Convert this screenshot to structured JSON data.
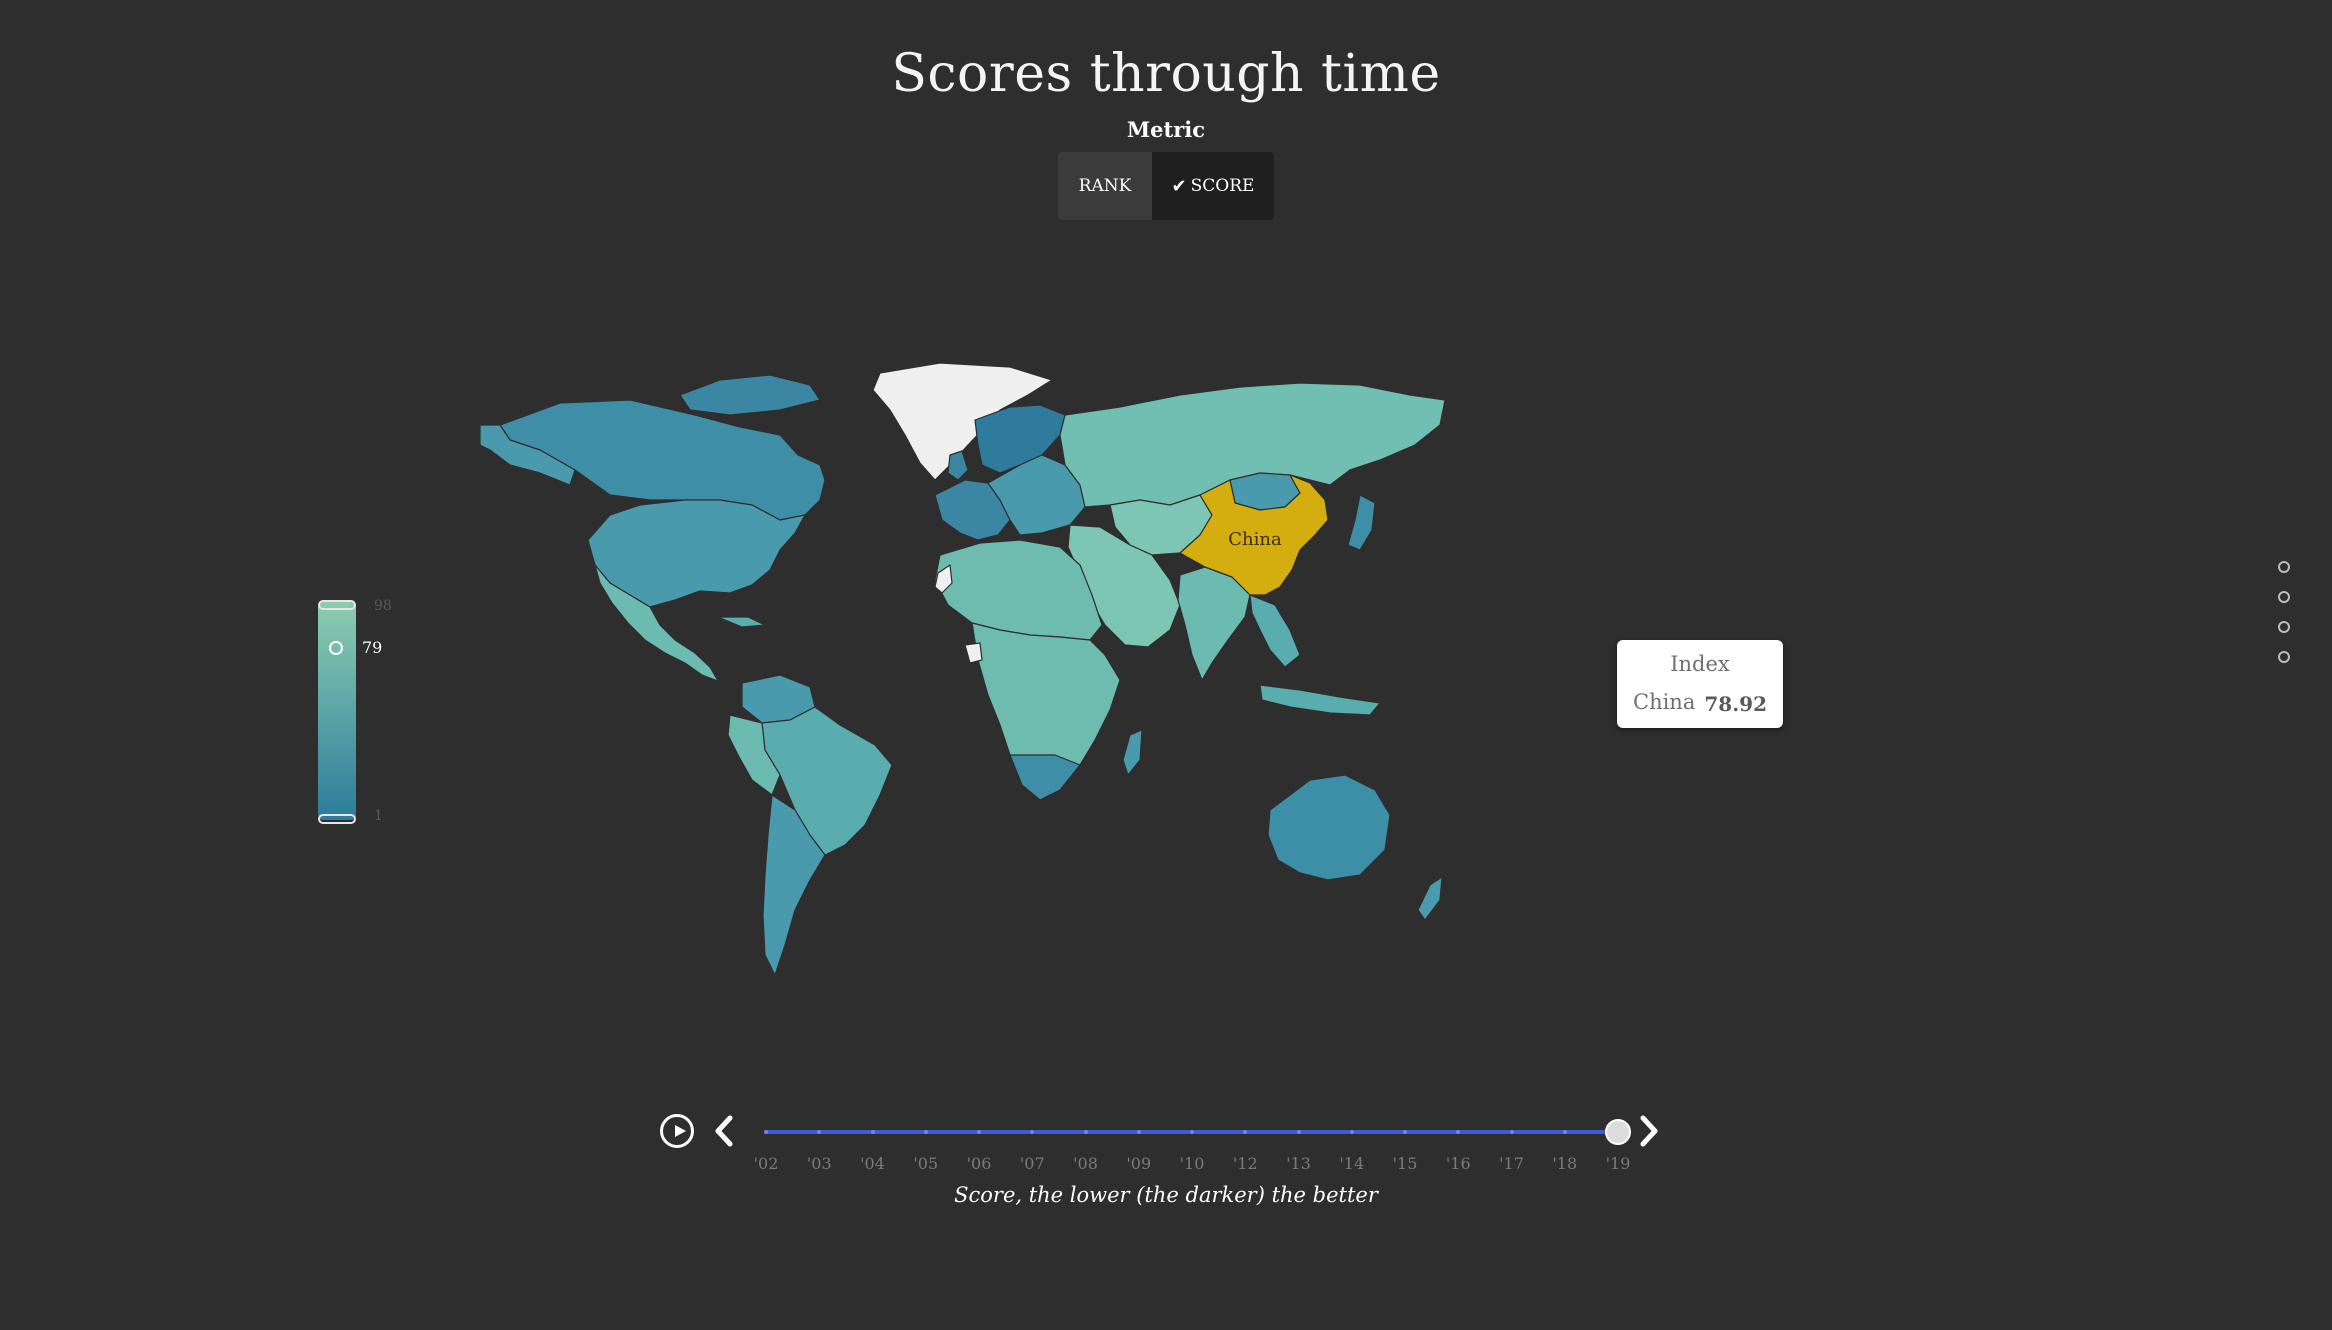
{
  "title": "Scores through time",
  "metric": {
    "label": "Metric",
    "options": [
      "RANK",
      "SCORE"
    ],
    "selected": "SCORE"
  },
  "legend": {
    "max": "98",
    "min": "1",
    "current": "79",
    "current_fraction": 0.79,
    "color_top": "#8ccdb0",
    "color_bottom": "#2c7c9c"
  },
  "map": {
    "highlight_label": "China",
    "highlight_color": "#d4ae0e",
    "colors": {
      "background": "#2e2e2e",
      "greenland": "#efefef",
      "north_america": "#4a9aae",
      "canada": "#3e8ea8",
      "south_america": "#5aadaf",
      "europe": "#3b87a3",
      "nordics": "#2f7b9b",
      "russia": "#71bfb2",
      "africa": "#6dbcaf",
      "middle_east": "#7dc6b4",
      "asia": "#6cbbb0",
      "oceania": "#3d8ea7"
    }
  },
  "tooltip": {
    "title": "Index",
    "country": "China",
    "value": "78.92"
  },
  "timeline": {
    "years": [
      "'02",
      "'03",
      "'04",
      "'05",
      "'06",
      "'07",
      "'08",
      "'09",
      "'10",
      "'12",
      "'13",
      "'14",
      "'15",
      "'16",
      "'17",
      "'18",
      "'19"
    ],
    "selected_year": "'19",
    "selected_index": 16,
    "track_color": "#3d5bd9"
  },
  "caption": "Score, the lower (the darker) the better"
}
